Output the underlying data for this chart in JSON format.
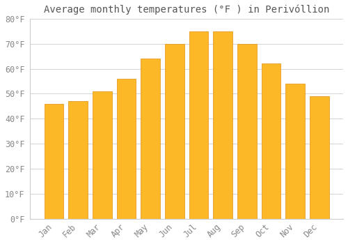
{
  "title": "Average monthly temperatures (°F ) in Perivóllion",
  "months": [
    "Jan",
    "Feb",
    "Mar",
    "Apr",
    "May",
    "Jun",
    "Jul",
    "Aug",
    "Sep",
    "Oct",
    "Nov",
    "Dec"
  ],
  "values": [
    46,
    47,
    51,
    56,
    64,
    70,
    75,
    75,
    70,
    62,
    54,
    49
  ],
  "bar_color": "#FDB827",
  "bar_edge_color": "#E09010",
  "background_color": "#FFFFFF",
  "grid_color": "#CCCCCC",
  "tick_label_color": "#888888",
  "title_color": "#555555",
  "ylim": [
    0,
    80
  ],
  "yticks": [
    0,
    10,
    20,
    30,
    40,
    50,
    60,
    70,
    80
  ],
  "title_fontsize": 10,
  "tick_fontsize": 8.5,
  "bar_width": 0.8
}
